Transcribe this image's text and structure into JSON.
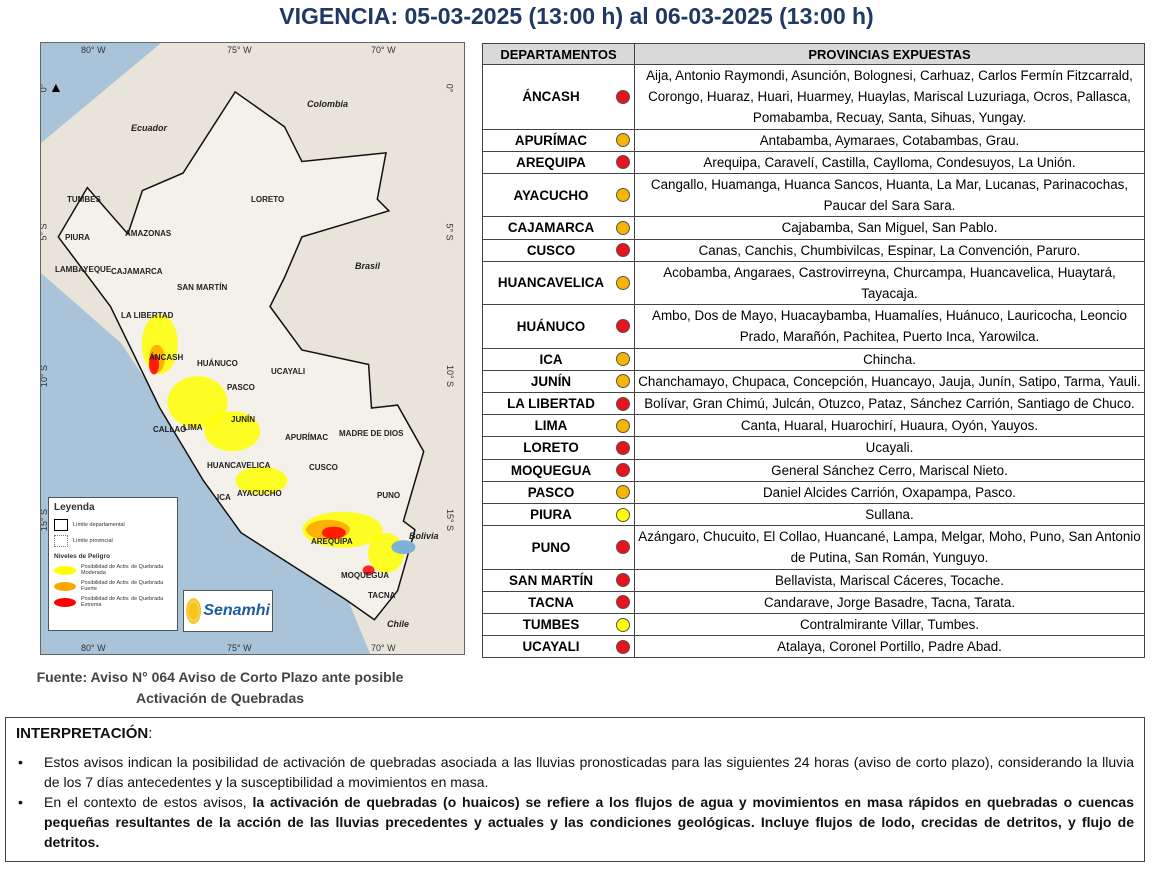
{
  "title": "VIGENCIA: 05-03-2025 (13:00 h) al 06-03-2025 (13:00 h)",
  "map": {
    "lon_ticks": [
      "80° W",
      "75° W",
      "70° W"
    ],
    "lat_ticks": [
      "0°",
      "5° S",
      "10° S",
      "15° S"
    ],
    "countries": [
      "Colombia",
      "Ecuador",
      "Brasil",
      "Bolivia",
      "Chile"
    ],
    "regions": [
      "TUMBES",
      "PIURA",
      "AMAZONAS",
      "LAMBAYEQUE",
      "CAJAMARCA",
      "SAN MARTÍN",
      "LA LIBERTAD",
      "LORETO",
      "ÁNCASH",
      "HUÁNUCO",
      "UCAYALI",
      "PASCO",
      "JUNÍN",
      "CALLAO",
      "LIMA",
      "MADRE DE DIOS",
      "HUANCAVELICA",
      "CUSCO",
      "ICA",
      "AYACUCHO",
      "APURÍMAC",
      "PUNO",
      "AREQUIPA",
      "MOQUEGUA",
      "TACNA"
    ],
    "legend": {
      "title": "Leyenda",
      "dept": "Límite departamental",
      "prov": "Límite provincial",
      "levels_title": "Niveles de Peligro",
      "levels": [
        {
          "label": "Posibilidad de Activ. de Quebrada Moderada",
          "color": "#ffff00"
        },
        {
          "label": "Posibilidad de Activ. de Quebrada Fuerte",
          "color": "#ffa500"
        },
        {
          "label": "Posibilidad de Activ. de Quebrada Extrema",
          "color": "#ff0000"
        }
      ]
    },
    "logo": "Senamhi"
  },
  "fuente": "Fuente: Aviso N° 064 Aviso de Corto Plazo ante posible Activación de Quebradas",
  "table": {
    "headers": [
      "DEPARTAMENTOS",
      "PROVINCIAS EXPUESTAS"
    ],
    "level_colors": {
      "extrema": "#e8131b",
      "fuerte": "#f7b500",
      "moderada": "#ffff00"
    },
    "rows": [
      {
        "dept": "ÁNCASH",
        "level": "extrema",
        "provinces": "Aija, Antonio Raymondi, Asunción, Bolognesi, Carhuaz, Carlos Fermín Fitzcarrald, Corongo, Huaraz, Huari, Huarmey, Huaylas, Mariscal Luzuriaga, Ocros, Pallasca, Pomabamba, Recuay, Santa, Sihuas, Yungay."
      },
      {
        "dept": "APURÍMAC",
        "level": "fuerte",
        "provinces": "Antabamba, Aymaraes, Cotabambas, Grau."
      },
      {
        "dept": "AREQUIPA",
        "level": "extrema",
        "provinces": "Arequipa, Caravelí, Castilla, Caylloma, Condesuyos, La Unión."
      },
      {
        "dept": "AYACUCHO",
        "level": "fuerte",
        "provinces": "Cangallo, Huamanga, Huanca Sancos, Huanta, La Mar, Lucanas, Parinacochas, Paucar del Sara Sara."
      },
      {
        "dept": "CAJAMARCA",
        "level": "fuerte",
        "provinces": "Cajabamba, San Miguel, San Pablo."
      },
      {
        "dept": "CUSCO",
        "level": "extrema",
        "provinces": "Canas, Canchis, Chumbivilcas, Espinar, La Convención, Paruro."
      },
      {
        "dept": "HUANCAVELICA",
        "level": "fuerte",
        "provinces": "Acobamba, Angaraes, Castrovirreyna, Churcampa, Huancavelica, Huaytará, Tayacaja."
      },
      {
        "dept": "HUÁNUCO",
        "level": "extrema",
        "provinces": "Ambo, Dos de Mayo, Huacaybamba, Huamalíes, Huánuco, Lauricocha, Leoncio Prado, Marañón, Pachitea, Puerto Inca, Yarowilca."
      },
      {
        "dept": "ICA",
        "level": "fuerte",
        "provinces": "Chincha."
      },
      {
        "dept": "JUNÍN",
        "level": "fuerte",
        "provinces": "Chanchamayo, Chupaca, Concepción, Huancayo, Jauja, Junín, Satipo, Tarma, Yauli."
      },
      {
        "dept": "LA LIBERTAD",
        "level": "extrema",
        "provinces": "Bolívar, Gran Chimú, Julcán, Otuzco, Pataz, Sánchez Carrión, Santiago de Chuco."
      },
      {
        "dept": "LIMA",
        "level": "fuerte",
        "provinces": "Canta, Huaral, Huarochirí, Huaura, Oyón, Yauyos."
      },
      {
        "dept": "LORETO",
        "level": "extrema",
        "provinces": "Ucayali."
      },
      {
        "dept": "MOQUEGUA",
        "level": "extrema",
        "provinces": "General Sánchez Cerro, Mariscal Nieto."
      },
      {
        "dept": "PASCO",
        "level": "fuerte",
        "provinces": "Daniel Alcides Carrión, Oxapampa, Pasco."
      },
      {
        "dept": "PIURA",
        "level": "moderada",
        "provinces": "Sullana."
      },
      {
        "dept": "PUNO",
        "level": "extrema",
        "provinces": "Azángaro, Chucuito, El Collao, Huancané, Lampa, Melgar, Moho, Puno, San Antonio de Putina, San Román, Yunguyo."
      },
      {
        "dept": "SAN MARTÍN",
        "level": "extrema",
        "provinces": "Bellavista, Mariscal Cáceres, Tocache."
      },
      {
        "dept": "TACNA",
        "level": "extrema",
        "provinces": "Candarave, Jorge Basadre, Tacna, Tarata."
      },
      {
        "dept": "TUMBES",
        "level": "moderada",
        "provinces": "Contralmirante Villar, Tumbes."
      },
      {
        "dept": "UCAYALI",
        "level": "extrema",
        "provinces": "Atalaya, Coronel Portillo, Padre Abad."
      }
    ]
  },
  "interpretation": {
    "title": "INTERPRETACIÓN",
    "b1": "Estos avisos indican la posibilidad de activación de quebradas asociada a las lluvias pronosticadas para las siguientes 24 horas (aviso de corto plazo), considerando la lluvia de los 7 días antecedentes y la susceptibilidad a movimientos en masa.",
    "b2_pre": "En el contexto de estos avisos, ",
    "b2_bold": "la activación de quebradas (o huaicos) se refiere a los flujos de agua y movimientos en masa rápidos en quebradas o cuencas pequeñas resultantes de la acción de las lluvias precedentes y actuales y las condiciones geológicas. Incluye flujos de lodo, crecidas de detritos, y flujo de detritos."
  }
}
